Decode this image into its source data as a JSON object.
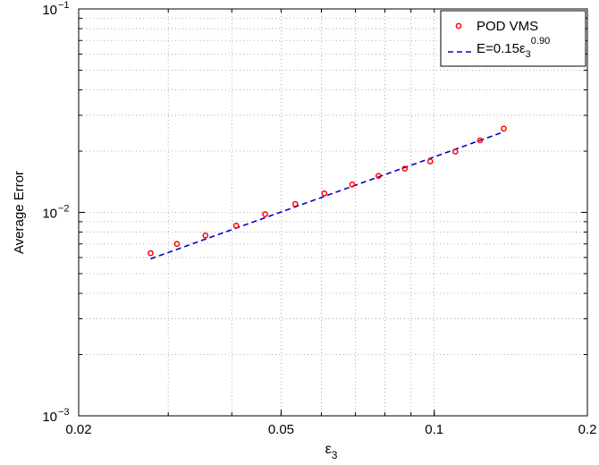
{
  "chart_data": {
    "type": "scatter",
    "title": "",
    "xlabel": "ε",
    "xlabel_sub": "3",
    "ylabel": "Average Error",
    "xscale": "log",
    "yscale": "log",
    "xlim": [
      0.02,
      0.2
    ],
    "ylim": [
      0.001,
      0.1
    ],
    "grid": true,
    "grid_style": "dotted",
    "legend_position": "top-right",
    "x_ticks": [
      {
        "value": 0.02,
        "label": "0.02"
      },
      {
        "value": 0.05,
        "label": "0.05"
      },
      {
        "value": 0.1,
        "label": "0.1"
      },
      {
        "value": 0.2,
        "label": "0.2"
      }
    ],
    "y_ticks": [
      {
        "value": 0.001,
        "base": "10",
        "exp": "−3"
      },
      {
        "value": 0.01,
        "base": "10",
        "exp": "−2"
      },
      {
        "value": 0.1,
        "base": "10",
        "exp": "−1"
      }
    ],
    "series": [
      {
        "name": "POD VMS",
        "kind": "markers",
        "marker": "circle",
        "color": "#ff0000",
        "x": [
          0.0277,
          0.0312,
          0.0355,
          0.0408,
          0.0465,
          0.0533,
          0.0608,
          0.069,
          0.0777,
          0.0875,
          0.0982,
          0.11,
          0.123,
          0.137
        ],
        "y": [
          0.0063,
          0.007,
          0.0077,
          0.0086,
          0.0098,
          0.011,
          0.0124,
          0.0137,
          0.0151,
          0.0164,
          0.0178,
          0.0199,
          0.0226,
          0.0258
        ]
      },
      {
        "name": "E=0.15ε",
        "name_sub": "3",
        "name_sup": "0.90",
        "kind": "line",
        "line_style": "dashed",
        "color": "#0000cc",
        "x": [
          0.0277,
          0.137
        ],
        "y": [
          0.00591,
          0.02487
        ]
      }
    ]
  }
}
